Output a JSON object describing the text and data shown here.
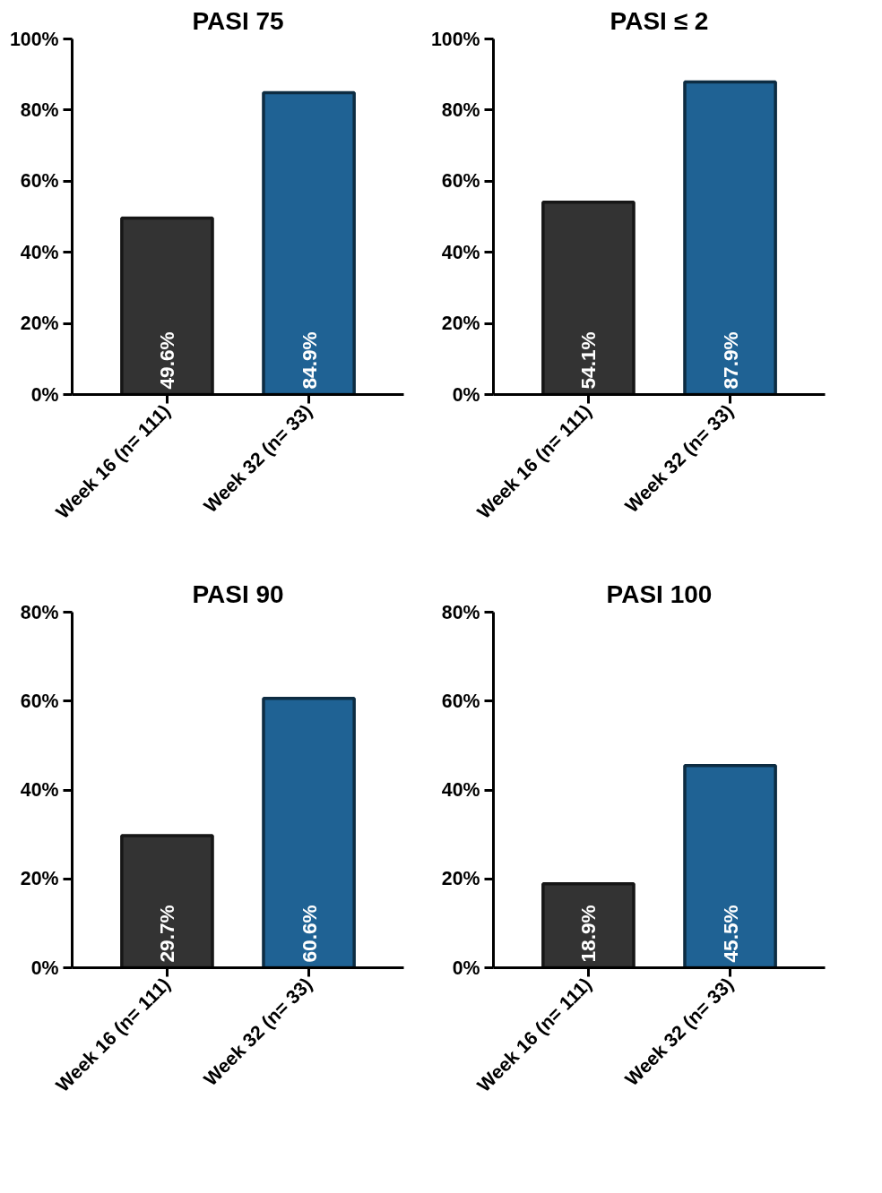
{
  "chart_data": [
    {
      "type": "bar",
      "title": "PASI 75",
      "categories": [
        "Week 16 (n= 111)",
        "Week 32 (n= 33)"
      ],
      "values": [
        49.6,
        84.9
      ],
      "colors": [
        "#333333",
        "#1f6294"
      ],
      "value_labels": [
        "49.6%",
        "84.9%"
      ],
      "ylim": [
        0,
        100
      ],
      "yticks": [
        {
          "value": 0,
          "label": "0%"
        },
        {
          "value": 20,
          "label": "20%"
        },
        {
          "value": 40,
          "label": "40%"
        },
        {
          "value": 60,
          "label": "60%"
        },
        {
          "value": 80,
          "label": "80%"
        },
        {
          "value": 100,
          "label": "100%"
        }
      ]
    },
    {
      "type": "bar",
      "title": "PASI ≤ 2",
      "categories": [
        "Week 16 (n= 111)",
        "Week 32 (n= 33)"
      ],
      "values": [
        54.1,
        87.9
      ],
      "colors": [
        "#333333",
        "#1f6294"
      ],
      "value_labels": [
        "54.1%",
        "87.9%"
      ],
      "ylim": [
        0,
        100
      ],
      "yticks": [
        {
          "value": 0,
          "label": "0%"
        },
        {
          "value": 20,
          "label": "20%"
        },
        {
          "value": 40,
          "label": "40%"
        },
        {
          "value": 60,
          "label": "60%"
        },
        {
          "value": 80,
          "label": "80%"
        },
        {
          "value": 100,
          "label": "100%"
        }
      ]
    },
    {
      "type": "bar",
      "title": "PASI 90",
      "categories": [
        "Week 16 (n= 111)",
        "Week 32 (n= 33)"
      ],
      "values": [
        29.7,
        60.6
      ],
      "colors": [
        "#333333",
        "#1f6294"
      ],
      "value_labels": [
        "29.7%",
        "60.6%"
      ],
      "ylim": [
        0,
        80
      ],
      "yticks": [
        {
          "value": 0,
          "label": "0%"
        },
        {
          "value": 20,
          "label": "20%"
        },
        {
          "value": 40,
          "label": "40%"
        },
        {
          "value": 60,
          "label": "60%"
        },
        {
          "value": 80,
          "label": "80%"
        }
      ]
    },
    {
      "type": "bar",
      "title": "PASI 100",
      "categories": [
        "Week 16 (n= 111)",
        "Week 32 (n= 33)"
      ],
      "values": [
        18.9,
        45.5
      ],
      "colors": [
        "#333333",
        "#1f6294"
      ],
      "value_labels": [
        "18.9%",
        "45.5%"
      ],
      "ylim": [
        0,
        80
      ],
      "yticks": [
        {
          "value": 0,
          "label": "0%"
        },
        {
          "value": 20,
          "label": "20%"
        },
        {
          "value": 40,
          "label": "40%"
        },
        {
          "value": 60,
          "label": "60%"
        },
        {
          "value": 80,
          "label": "80%"
        }
      ]
    }
  ]
}
